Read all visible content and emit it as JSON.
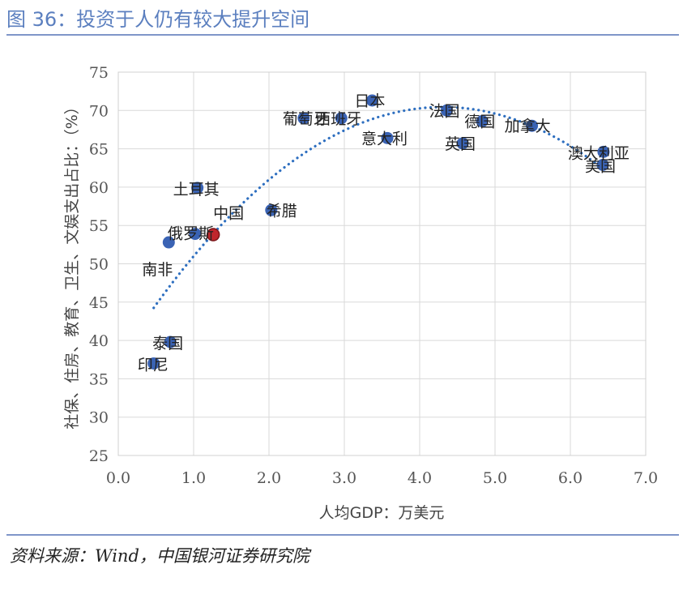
{
  "figure": {
    "title": "图 36：投资于人仍有较大提升空间",
    "source": "资料来源：Wind，中国银河证券研究院"
  },
  "colors": {
    "point": "#3a63b4",
    "highlight": "#c0262c",
    "trend": "#2e6fc0",
    "title": "#5b7fbf"
  },
  "chart_data": {
    "type": "scatter",
    "xlabel": "人均GDP：万美元",
    "ylabel": "社保、住房、教育、卫生、文娱支出占比：（%）",
    "xlim": [
      0,
      7
    ],
    "ylim": [
      25,
      75
    ],
    "xticks": [
      "0.0",
      "1.0",
      "2.0",
      "3.0",
      "4.0",
      "5.0",
      "6.0",
      "7.0"
    ],
    "yticks": [
      "25",
      "30",
      "35",
      "40",
      "45",
      "50",
      "55",
      "60",
      "65",
      "70",
      "75"
    ],
    "grid": true,
    "trendline": "polynomial",
    "points": [
      {
        "label": "印尼",
        "x": 0.47,
        "y": 37.0
      },
      {
        "label": "泰国",
        "x": 0.69,
        "y": 39.8
      },
      {
        "label": "南非",
        "x": 0.67,
        "y": 52.8
      },
      {
        "label": "俄罗斯",
        "x": 1.02,
        "y": 53.9
      },
      {
        "label": "中国",
        "x": 1.26,
        "y": 53.8,
        "highlight": true
      },
      {
        "label": "土耳其",
        "x": 1.05,
        "y": 59.9
      },
      {
        "label": "希腊",
        "x": 2.03,
        "y": 57.0
      },
      {
        "label": "葡萄牙",
        "x": 2.46,
        "y": 69.0
      },
      {
        "label": "西班牙",
        "x": 2.96,
        "y": 69.0
      },
      {
        "label": "日本",
        "x": 3.37,
        "y": 71.3
      },
      {
        "label": "意大利",
        "x": 3.57,
        "y": 66.4
      },
      {
        "label": "法国",
        "x": 4.36,
        "y": 70.0
      },
      {
        "label": "英国",
        "x": 4.57,
        "y": 65.7
      },
      {
        "label": "德国",
        "x": 4.83,
        "y": 68.6
      },
      {
        "label": "加拿大",
        "x": 5.49,
        "y": 68.0
      },
      {
        "label": "澳大利亚",
        "x": 6.44,
        "y": 64.6
      },
      {
        "label": "美国",
        "x": 6.43,
        "y": 62.9
      }
    ]
  }
}
